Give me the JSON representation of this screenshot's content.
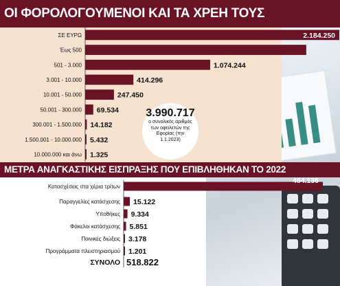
{
  "title": "ΟΙ ΦΟΡΟΛΟΓΟΥΜΕΝΟΙ ΚΑΙ ΤΑ ΧΡΕΗ ΤΟΥΣ",
  "subtitle": "ΜΕΤΡΑ ΑΝΑΓΚΑΣΤΙΚΗΣ ΕΙΣΠΡΑΞΗΣ ΠΟΥ ΕΠΙΒΛΗΘΗΚΑΝ ΤΟ 2022",
  "callout": {
    "value": "3.990.717",
    "text": "ο συνολικός αριθμός των οφειλετών της Εφορίας (την 1.1.2023)"
  },
  "colors": {
    "bar": "#6b1326",
    "band": "#f7e1cf",
    "text": "#111111"
  },
  "chart_data": [
    {
      "type": "bar",
      "title": "ΟΙ ΦΟΡΟΛΟΓΟΥΜΕΝΟΙ ΚΑΙ ΤΑ ΧΡΕΗ ΤΟΥΣ",
      "unit_label": "ΣΕ ΕΥΡΩ",
      "categories": [
        "ΣΕ ΕΥΡΩ",
        "Έως 500",
        "501 - 3.000",
        "3.001 - 10.000",
        "10.001 - 50.000",
        "50.001 - 300.000",
        "300.001 - 1.500.000",
        "1.500.001 - 10.000.000",
        "10.000.000 και άνω"
      ],
      "values": [
        2184250,
        1900000,
        1074244,
        414296,
        247450,
        69534,
        14182,
        5432,
        1325
      ],
      "value_labels": [
        "2.184.250",
        "",
        "1.074.244",
        "414.296",
        "247.450",
        "69.534",
        "14.182",
        "5.432",
        "1.325"
      ]
    },
    {
      "type": "bar",
      "title": "ΜΕΤΡΑ ΑΝΑΓΚΑΣΤΙΚΗΣ ΕΙΣΠΡΑΞΗΣ ΠΟΥ ΕΠΙΒΛΗΘΗΚΑΝ ΤΟ 2022",
      "categories": [
        "Κατασχέσεις στα χέρια τρίτων",
        "Παραγγελίες κατάσχεσης",
        "Υποθήκες",
        "Φάκελοι κατάσχεσης",
        "Ποινικές διώξεις",
        "Προγράμματα πλειστηριασμού"
      ],
      "values": [
        484136,
        15122,
        9334,
        5851,
        3178,
        1201
      ],
      "value_labels": [
        "484.136",
        "15.122",
        "9.334",
        "5.851",
        "3.178",
        "1.201"
      ],
      "total_label": "ΣΥΝΟΛΟ",
      "total_value": "518.822"
    }
  ]
}
